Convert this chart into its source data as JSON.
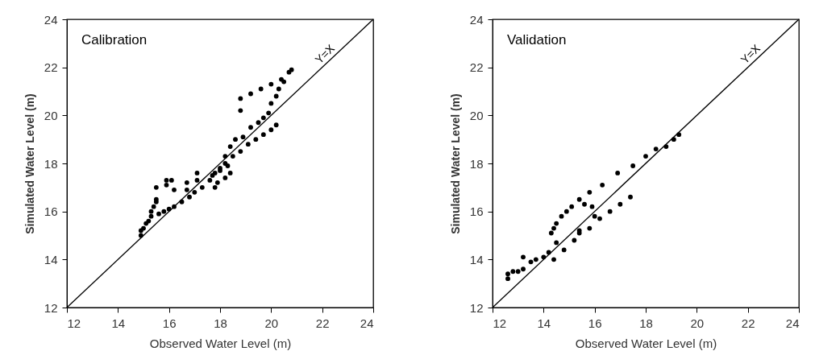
{
  "chart_data": [
    {
      "type": "scatter",
      "xlabel": "Observed Water Level (m)",
      "ylabel": "Simulated Water Level (m)",
      "annotations": [
        "Calibration"
      ],
      "xlim": [
        12,
        24
      ],
      "ylim": [
        12,
        24
      ],
      "xticks": [
        12,
        14,
        16,
        18,
        20,
        22,
        24
      ],
      "yticks": [
        12,
        14,
        16,
        18,
        20,
        22,
        24
      ],
      "grid": false,
      "series": [
        {
          "marker": "circle",
          "color": "#000000",
          "x": [
            14.9,
            14.9,
            15.0,
            15.1,
            15.2,
            15.3,
            15.3,
            15.4,
            15.5,
            15.5,
            15.6,
            15.8,
            16.0,
            16.2,
            16.5,
            16.8,
            17.0,
            17.3,
            17.6,
            17.8,
            18.0,
            18.2,
            18.5,
            18.8,
            19.1,
            19.4,
            19.7,
            20.0,
            20.2,
            15.5,
            15.9,
            16.1,
            15.9,
            16.2,
            16.7,
            16.7,
            17.1,
            17.1,
            17.7,
            17.8,
            17.9,
            18.0,
            18.2,
            18.4,
            18.3,
            18.2,
            18.4,
            18.6,
            18.9,
            19.2,
            19.5,
            19.7,
            19.9,
            20.0,
            20.2,
            20.3,
            20.5,
            18.8,
            19.2,
            19.6,
            20.0,
            20.4,
            20.7,
            20.8,
            18.8
          ],
          "values": [
            15.0,
            15.2,
            15.3,
            15.5,
            15.6,
            15.8,
            16.0,
            16.2,
            16.4,
            16.5,
            15.9,
            16.0,
            16.1,
            16.2,
            16.4,
            16.6,
            16.8,
            17.0,
            17.3,
            17.6,
            17.8,
            18.0,
            18.3,
            18.5,
            18.8,
            19.0,
            19.2,
            19.4,
            19.6,
            17.0,
            17.3,
            17.3,
            17.1,
            16.9,
            17.2,
            16.9,
            17.3,
            17.6,
            17.5,
            17.0,
            17.2,
            17.7,
            17.4,
            17.6,
            17.9,
            18.3,
            18.7,
            19.0,
            19.1,
            19.5,
            19.7,
            19.9,
            20.1,
            20.5,
            20.8,
            21.1,
            21.4,
            20.7,
            20.9,
            21.1,
            21.3,
            21.5,
            21.8,
            21.9,
            20.2
          ]
        },
        {
          "type": "line",
          "name": "Y=X",
          "color": "#000000",
          "line_style": "solid",
          "x": [
            12,
            24
          ],
          "values": [
            12,
            24
          ]
        }
      ]
    },
    {
      "type": "scatter",
      "xlabel": "Observed Water Level (m)",
      "ylabel": "Simulated Water Level (m)",
      "annotations": [
        "Validation"
      ],
      "xlim": [
        12,
        24
      ],
      "ylim": [
        12,
        24
      ],
      "xticks": [
        12,
        14,
        16,
        18,
        20,
        22,
        24
      ],
      "yticks": [
        12,
        14,
        16,
        18,
        20,
        22,
        24
      ],
      "grid": false,
      "series": [
        {
          "marker": "circle",
          "color": "#000000",
          "x": [
            12.6,
            12.6,
            12.8,
            13.0,
            13.2,
            13.2,
            13.5,
            13.7,
            14.0,
            14.2,
            14.3,
            14.4,
            14.5,
            14.7,
            14.9,
            15.1,
            15.4,
            15.8,
            16.3,
            16.9,
            17.5,
            18.0,
            18.4,
            18.8,
            19.1,
            19.3,
            14.4,
            14.8,
            15.2,
            15.4,
            15.8,
            16.2,
            16.6,
            17.0,
            17.4,
            15.6,
            15.9,
            16.0,
            15.4,
            14.5
          ],
          "values": [
            13.2,
            13.4,
            13.5,
            13.5,
            13.6,
            14.1,
            13.9,
            14.0,
            14.1,
            14.3,
            15.1,
            15.3,
            15.5,
            15.8,
            16.0,
            16.2,
            16.5,
            16.8,
            17.1,
            17.6,
            17.9,
            18.3,
            18.6,
            18.7,
            19.0,
            19.2,
            14.0,
            14.4,
            14.8,
            15.1,
            15.3,
            15.7,
            16.0,
            16.3,
            16.6,
            16.3,
            16.2,
            15.8,
            15.2,
            14.7
          ]
        },
        {
          "type": "line",
          "name": "Y=X",
          "color": "#000000",
          "line_style": "solid",
          "x": [
            12,
            24
          ],
          "values": [
            12,
            24
          ]
        }
      ]
    }
  ]
}
